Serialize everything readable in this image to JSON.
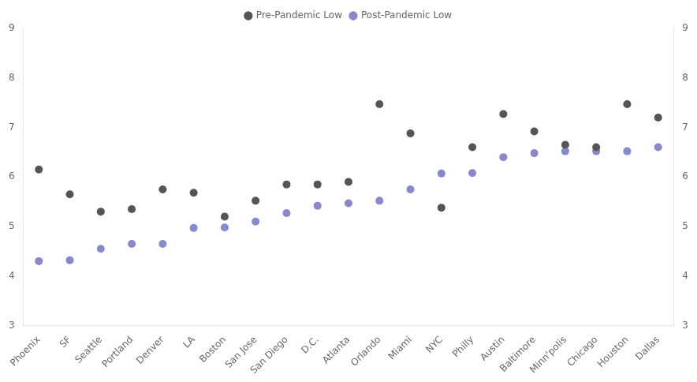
{
  "chart_data": {
    "type": "scatter",
    "categories": [
      "Phoenix",
      "SF",
      "Seattle",
      "Portland",
      "Denver",
      "LA",
      "Boston",
      "San Jose",
      "San Diego",
      "D.C.",
      "Atlanta",
      "Orlando",
      "Miami",
      "NYC",
      "Philly",
      "Austin",
      "Baltimore",
      "Minn'polis",
      "Chicago",
      "Houston",
      "Dallas"
    ],
    "series": [
      {
        "name": "Pre-Pandemic Low",
        "color": "#555555",
        "values": [
          6.15,
          5.65,
          5.3,
          5.35,
          5.75,
          5.68,
          5.2,
          5.52,
          5.85,
          5.85,
          5.9,
          7.47,
          6.88,
          5.38,
          6.6,
          7.27,
          6.92,
          6.65,
          6.6,
          7.47,
          7.2
        ]
      },
      {
        "name": "Post-Pandemic Low",
        "color": "#8888cc",
        "values": [
          4.3,
          4.32,
          4.55,
          4.65,
          4.65,
          4.97,
          4.98,
          5.1,
          5.27,
          5.42,
          5.47,
          5.52,
          5.75,
          6.07,
          6.08,
          6.4,
          6.48,
          6.52,
          6.52,
          6.52,
          6.6
        ]
      }
    ],
    "ylim": [
      3,
      9
    ],
    "yticks": [
      3,
      4,
      5,
      6,
      7,
      8,
      9
    ],
    "y2lim": [
      3,
      9
    ],
    "y2ticks": [
      3,
      4,
      5,
      6,
      7,
      8,
      9
    ],
    "grid": false,
    "legend": "top"
  }
}
